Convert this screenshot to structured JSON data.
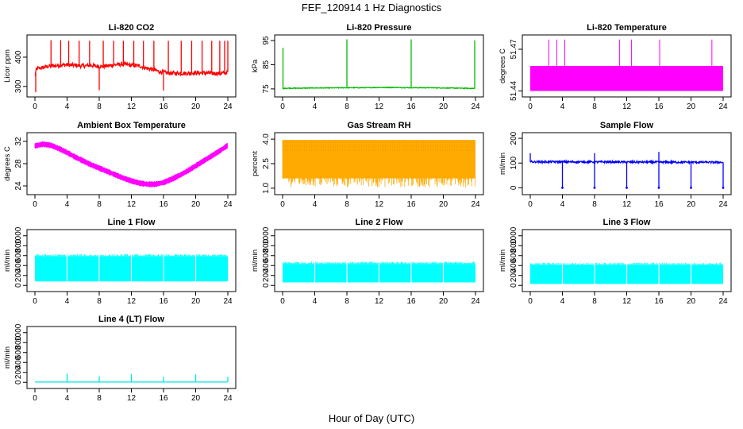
{
  "figure": {
    "title": "FEF_120914  1 Hz Diagnostics",
    "xlabel": "Hour of Day (UTC)"
  },
  "chart_data": [
    {
      "id": "co2",
      "type": "line",
      "title": "Li-820 CO2",
      "ylabel": "Licor ppm",
      "color": "#ff0000",
      "xlim": [
        0,
        24
      ],
      "ylim": [
        275,
        465
      ],
      "xticks": [
        0,
        4,
        8,
        12,
        16,
        20,
        24
      ],
      "yticks": [
        300,
        400
      ],
      "x": [
        0.0,
        0.2,
        0.5,
        1,
        1.5,
        2,
        3,
        4,
        5,
        6,
        7,
        8,
        9,
        10,
        11,
        12,
        13,
        14,
        15,
        15.5,
        16,
        17,
        18,
        19,
        20,
        21,
        22,
        23,
        23.7,
        24.0
      ],
      "y": [
        335,
        360,
        362,
        364,
        368,
        370,
        372,
        374,
        372,
        370,
        372,
        368,
        370,
        374,
        376,
        372,
        370,
        362,
        355,
        350,
        348,
        345,
        345,
        345,
        346,
        346,
        345,
        344,
        346,
        350
      ],
      "spikes": [
        [
          0.1,
          280
        ],
        [
          2.0,
          458
        ],
        [
          3.2,
          458
        ],
        [
          4.2,
          456
        ],
        [
          5.5,
          456
        ],
        [
          6.8,
          456
        ],
        [
          8.0,
          287
        ],
        [
          8.5,
          456
        ],
        [
          9.8,
          456
        ],
        [
          11.0,
          456
        ],
        [
          12.3,
          456
        ],
        [
          13.5,
          456
        ],
        [
          14.8,
          456
        ],
        [
          16.0,
          286
        ],
        [
          16.6,
          456
        ],
        [
          18.2,
          456
        ],
        [
          19.5,
          456
        ],
        [
          20.8,
          456
        ],
        [
          22.0,
          456
        ],
        [
          23.0,
          456
        ],
        [
          23.6,
          456
        ],
        [
          24.0,
          456
        ]
      ]
    },
    {
      "id": "pressure",
      "type": "line",
      "title": "Li-820 Pressure",
      "ylabel": "kPa",
      "color": "#00bb00",
      "xlim": [
        0,
        24
      ],
      "ylim": [
        73,
        96
      ],
      "xticks": [
        0,
        4,
        8,
        12,
        16,
        20,
        24
      ],
      "yticks": [
        75,
        85,
        95
      ],
      "x": [
        0.05,
        0.3,
        2,
        4,
        6,
        8,
        10,
        12,
        14,
        16,
        18,
        20,
        22,
        23.8
      ],
      "y": [
        75,
        75.3,
        75.3,
        75.4,
        75.4,
        75.5,
        75.5,
        75.6,
        75.6,
        75.5,
        75.5,
        75.4,
        75.3,
        75.2
      ],
      "spikes": [
        [
          0.05,
          92
        ],
        [
          8.0,
          95.5
        ],
        [
          16.0,
          95.5
        ],
        [
          23.9,
          95.0
        ]
      ]
    },
    {
      "id": "licor-temp",
      "type": "area",
      "title": "Li-820 Temperature",
      "ylabel": "degrees C",
      "color": "#ff00ff",
      "xlim": [
        0,
        24
      ],
      "ylim": [
        51.438,
        51.478
      ],
      "xticks": [
        0,
        4,
        8,
        12,
        16,
        20,
        24
      ],
      "yticks": [
        51.44,
        51.47
      ],
      "band": [
        0,
        24,
        51.44,
        51.458
      ],
      "spikes": [
        [
          2.3,
          51.477
        ],
        [
          3.3,
          51.477
        ],
        [
          4.3,
          51.477
        ],
        [
          11.1,
          51.477
        ],
        [
          12.6,
          51.477
        ],
        [
          16.1,
          51.477
        ],
        [
          22.6,
          51.477
        ]
      ]
    },
    {
      "id": "box-temp",
      "type": "line",
      "title": "Ambient Box Temperature",
      "ylabel": "degrees C",
      "color": "#ff00ff",
      "xlim": [
        0,
        24
      ],
      "ylim": [
        23,
        33
      ],
      "xticks": [
        0,
        4,
        8,
        12,
        16,
        20,
        24
      ],
      "yticks": [
        24,
        28,
        32
      ],
      "x": [
        0,
        1,
        2,
        3,
        4,
        5,
        6,
        7,
        8,
        9,
        10,
        11,
        12,
        13,
        14,
        15,
        16,
        17,
        18,
        19,
        20,
        21,
        22,
        23,
        24
      ],
      "y": [
        31.2,
        31.5,
        31.3,
        30.7,
        30.0,
        29.2,
        28.5,
        27.8,
        27.2,
        26.6,
        26.0,
        25.4,
        24.9,
        24.5,
        24.3,
        24.3,
        24.6,
        25.2,
        25.9,
        26.7,
        27.6,
        28.5,
        29.4,
        30.3,
        31.3
      ],
      "noise": 0.5
    },
    {
      "id": "rh",
      "type": "area",
      "title": "Gas Stream RH",
      "ylabel": "percent",
      "color": "#ffaa00",
      "xlim": [
        0,
        24
      ],
      "ylim": [
        0.8,
        4.2
      ],
      "xticks": [
        0,
        4,
        8,
        12,
        16,
        20,
        24
      ],
      "yticks": [
        1.0,
        2.5,
        4.0
      ],
      "ytick_labels": [
        "1.0",
        "2.5",
        "4.0"
      ],
      "top": 3.95,
      "bottom": 1.05
    },
    {
      "id": "sample-flow",
      "type": "line",
      "title": "Sample Flow",
      "ylabel": "ml/min",
      "color": "#0000ff",
      "xlim": [
        0,
        24
      ],
      "ylim": [
        -15,
        210
      ],
      "xticks": [
        0,
        4,
        8,
        12,
        16,
        20,
        24
      ],
      "yticks": [
        0,
        100,
        200
      ],
      "x": [
        0,
        24
      ],
      "y": [
        105,
        103
      ],
      "dips": [
        [
          4.0,
          0
        ],
        [
          8.0,
          0
        ],
        [
          12.0,
          0
        ],
        [
          16.0,
          0
        ],
        [
          20.0,
          0
        ],
        [
          24.0,
          0
        ]
      ],
      "spikes": [
        [
          0.0,
          140
        ],
        [
          8.0,
          140
        ],
        [
          16.0,
          145
        ]
      ]
    },
    {
      "id": "line1",
      "type": "area",
      "title": "Line 1 Flow",
      "ylabel": "ml/min",
      "color": "#00ffff",
      "xlim": [
        0,
        24
      ],
      "ylim": [
        -60,
        1060
      ],
      "xticks": [
        0,
        4,
        8,
        12,
        16,
        20,
        24
      ],
      "yticks": [
        0,
        200,
        400,
        600,
        800,
        1000
      ],
      "top": 580,
      "bottom": 80,
      "gaps": [
        4,
        8,
        12,
        16,
        20
      ]
    },
    {
      "id": "line2",
      "type": "area",
      "title": "Line 2 Flow",
      "ylabel": "ml/min",
      "color": "#00ffff",
      "xlim": [
        0,
        24
      ],
      "ylim": [
        -60,
        1060
      ],
      "xticks": [
        0,
        4,
        8,
        12,
        16,
        20,
        24
      ],
      "yticks": [
        0,
        200,
        400,
        600,
        800,
        1000
      ],
      "top": 430,
      "bottom": 60,
      "gaps": [
        4,
        8,
        12,
        16,
        20
      ]
    },
    {
      "id": "line3",
      "type": "area",
      "title": "Line 3 Flow",
      "ylabel": "ml/min",
      "color": "#00ffff",
      "xlim": [
        0,
        24
      ],
      "ylim": [
        -60,
        1060
      ],
      "xticks": [
        0,
        4,
        8,
        12,
        16,
        20,
        24
      ],
      "yticks": [
        0,
        200,
        400,
        600,
        800,
        1000
      ],
      "top": 410,
      "bottom": 30,
      "gaps": [
        4,
        8,
        12,
        16,
        20
      ]
    },
    {
      "id": "line4",
      "type": "line",
      "title": "Line 4 (LT) Flow",
      "ylabel": "ml/min",
      "color": "#00e5e5",
      "xlim": [
        0,
        24
      ],
      "ylim": [
        -60,
        1060
      ],
      "xticks": [
        0,
        4,
        8,
        12,
        16,
        20,
        24
      ],
      "yticks": [
        0,
        200,
        400,
        600,
        800,
        1000
      ],
      "x": [
        0,
        24
      ],
      "y": [
        5,
        5
      ],
      "spikes": [
        [
          4.0,
          180
        ],
        [
          8.0,
          120
        ],
        [
          12.0,
          170
        ],
        [
          16.0,
          110
        ],
        [
          20.0,
          160
        ],
        [
          24.0,
          110
        ]
      ]
    }
  ]
}
